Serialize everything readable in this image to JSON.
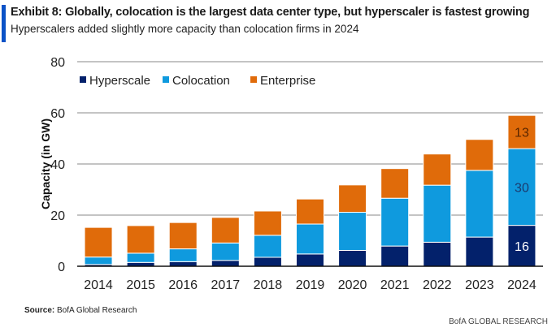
{
  "header": {
    "title": "Exhibit 8: Globally, colocation is the largest data center type, but hyperscaler is fastest growing",
    "subtitle": "Hyperscalers added slightly more capacity than colocation firms in 2024"
  },
  "footer": {
    "source_label": "Source:",
    "source_text": "BofA Global Research",
    "brand": "BofA GLOBAL RESEARCH"
  },
  "chart_data": {
    "type": "bar",
    "stacked": true,
    "title": "",
    "xlabel": "",
    "ylabel": "Capacity (in GW)",
    "ylim": [
      0,
      80
    ],
    "yticks": [
      0,
      20,
      40,
      60,
      80
    ],
    "grid": true,
    "legend_placement": "top-left",
    "categories": [
      "2014",
      "2015",
      "2016",
      "2017",
      "2018",
      "2019",
      "2020",
      "2021",
      "2022",
      "2023",
      "2024"
    ],
    "series": [
      {
        "name": "Hyperscale",
        "color": "#03216b",
        "values": [
          0.7,
          1.5,
          1.8,
          2.3,
          3.5,
          4.8,
          6.2,
          7.9,
          9.4,
          11.4,
          16
        ],
        "label_color": "#ffffff"
      },
      {
        "name": "Colocation",
        "color": "#0f9ade",
        "values": [
          2.9,
          3.6,
          5.0,
          6.8,
          8.6,
          11.7,
          14.9,
          18.7,
          22.3,
          26.1,
          30
        ],
        "label_color": "#1b3a6e"
      },
      {
        "name": "Enterprise",
        "color": "#e06b0a",
        "values": [
          11.6,
          10.8,
          10.3,
          10.0,
          9.5,
          9.8,
          10.7,
          11.6,
          12.2,
          12.1,
          13
        ],
        "label_color": "#5a2600"
      }
    ],
    "data_labels": [
      {
        "category": "2024",
        "series": "Hyperscale",
        "text": "16"
      },
      {
        "category": "2024",
        "series": "Colocation",
        "text": "30"
      },
      {
        "category": "2024",
        "series": "Enterprise",
        "text": "13"
      }
    ]
  }
}
